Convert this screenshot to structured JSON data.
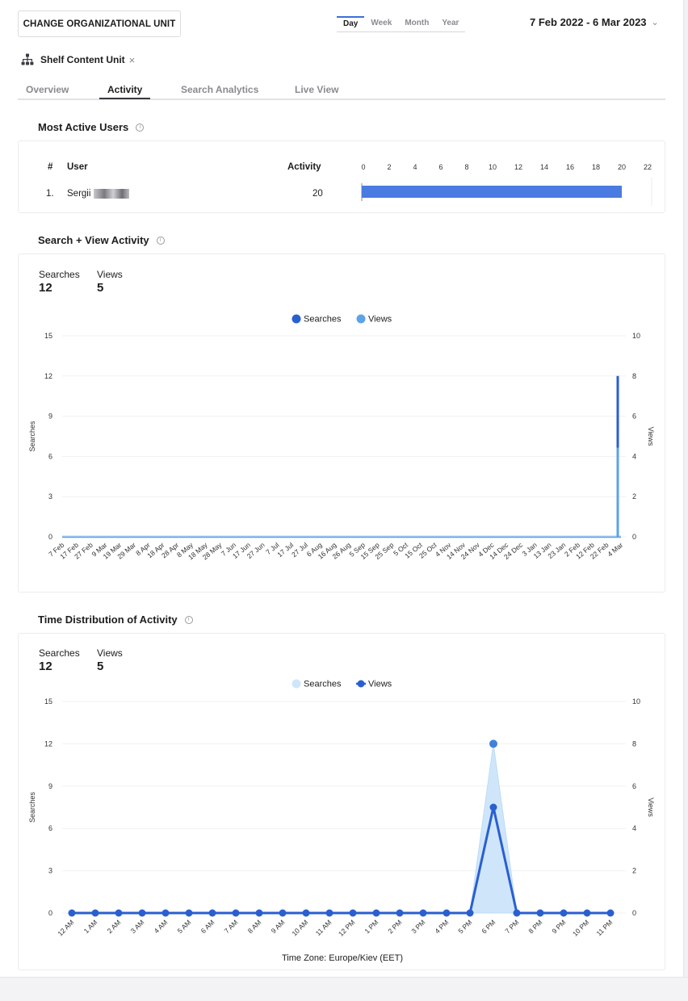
{
  "header": {
    "change_ou_label": "CHANGE ORGANIZATIONAL UNIT",
    "periods": [
      "Day",
      "Week",
      "Month",
      "Year"
    ],
    "active_period": "Day",
    "date_range": "7 Feb 2022 - 6 Mar 2023"
  },
  "unit": {
    "name": "Shelf Content Unit",
    "icon": "org-chart-icon"
  },
  "tabs": [
    {
      "label": "Overview"
    },
    {
      "label": "Activity"
    },
    {
      "label": "Search Analytics"
    },
    {
      "label": "Live View"
    }
  ],
  "active_tab": "Activity",
  "most_active": {
    "title": "Most Active Users",
    "col_rank": "#",
    "col_user": "User",
    "col_activity": "Activity",
    "rows": [
      {
        "rank": "1.",
        "user": "Sergii",
        "activity": "20"
      }
    ],
    "chart_data": {
      "type": "bar",
      "orientation": "horizontal",
      "categories": [
        "Sergii"
      ],
      "values": [
        20
      ],
      "xlim": [
        0,
        22
      ],
      "xticks": [
        "0",
        "2",
        "4",
        "6",
        "8",
        "10",
        "12",
        "14",
        "16",
        "18",
        "20",
        "22"
      ],
      "color": "#4a7be0"
    }
  },
  "search_view": {
    "title": "Search + View Activity",
    "stats": [
      {
        "label": "Searches",
        "value": "12"
      },
      {
        "label": "Views",
        "value": "5"
      }
    ],
    "chart_data": {
      "type": "line",
      "legend_position": "top-center",
      "series": [
        {
          "name": "Searches",
          "color": "#2a5fd0",
          "axis": "left",
          "last_value": 12
        },
        {
          "name": "Views",
          "color": "#5ca3e8",
          "axis": "right",
          "last_value": 5
        }
      ],
      "x_tick_labels": [
        "7 Feb",
        "17 Feb",
        "27 Feb",
        "9 Mar",
        "19 Mar",
        "29 Mar",
        "8 Apr",
        "18 Apr",
        "28 Apr",
        "8 May",
        "18 May",
        "28 May",
        "7 Jun",
        "17 Jun",
        "27 Jun",
        "7 Jul",
        "17 Jul",
        "27 Jul",
        "6 Aug",
        "16 Aug",
        "26 Aug",
        "5 Sep",
        "15 Sep",
        "25 Sep",
        "5 Oct",
        "15 Oct",
        "25 Oct",
        "4 Nov",
        "14 Nov",
        "24 Nov",
        "4 Dec",
        "14 Dec",
        "24 Dec",
        "3 Jan",
        "13 Jan",
        "23 Jan",
        "2 Feb",
        "12 Feb",
        "22 Feb",
        "4 Mar"
      ],
      "ylabel_left": "Searches",
      "ylabel_right": "Views",
      "yticks_left": [
        "15",
        "12",
        "9",
        "6",
        "3",
        "0"
      ],
      "yticks_right": [
        "10",
        "8",
        "6",
        "4",
        "2",
        "0"
      ],
      "ylim_left": [
        0,
        15
      ],
      "ylim_right": [
        0,
        10
      ]
    }
  },
  "time_dist": {
    "title": "Time Distribution of Activity",
    "stats": [
      {
        "label": "Searches",
        "value": "12"
      },
      {
        "label": "Views",
        "value": "5"
      }
    ],
    "timezone": "Time Zone: Europe/Kiev (EET)",
    "chart_data": {
      "type": "area",
      "legend_position": "top-center",
      "categories": [
        "12 AM",
        "1 AM",
        "2 AM",
        "3 AM",
        "4 AM",
        "5 AM",
        "6 AM",
        "7 AM",
        "8 AM",
        "9 AM",
        "10 AM",
        "11 AM",
        "12 PM",
        "1 PM",
        "2 PM",
        "3 PM",
        "4 PM",
        "5 PM",
        "6 PM",
        "7 PM",
        "8 PM",
        "9 PM",
        "10 PM",
        "11 PM"
      ],
      "series": [
        {
          "name": "Searches",
          "color": "#cfe6fa",
          "axis": "left",
          "values": [
            0,
            0,
            0,
            0,
            0,
            0,
            0,
            0,
            0,
            0,
            0,
            0,
            0,
            0,
            0,
            0,
            0,
            0,
            12,
            0,
            0,
            0,
            0,
            0
          ]
        },
        {
          "name": "Views",
          "color": "#2a5fd0",
          "axis": "right",
          "values": [
            0,
            0,
            0,
            0,
            0,
            0,
            0,
            0,
            0,
            0,
            0,
            0,
            0,
            0,
            0,
            0,
            0,
            0,
            5,
            0,
            0,
            0,
            0,
            0
          ]
        }
      ],
      "ylabel_left": "Searches",
      "ylabel_right": "Views",
      "yticks_left": [
        "15",
        "12",
        "9",
        "6",
        "3",
        "0"
      ],
      "yticks_right": [
        "10",
        "8",
        "6",
        "4",
        "2",
        "0"
      ],
      "ylim_left": [
        0,
        15
      ],
      "ylim_right": [
        0,
        10
      ]
    }
  }
}
